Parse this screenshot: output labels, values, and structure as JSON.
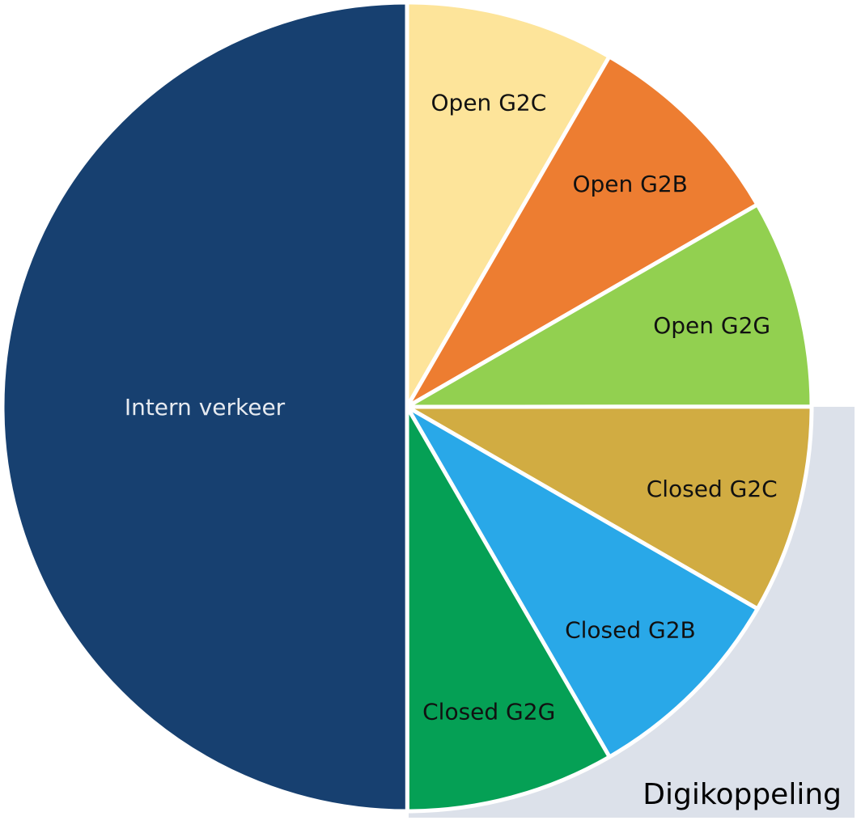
{
  "chart_data": {
    "type": "pie",
    "title": "",
    "start_angle_deg": 0,
    "direction": "clockwise",
    "slices": [
      {
        "label": "Open G2C",
        "value": 8.33,
        "color": "#FDE49A",
        "text_color": "#111111"
      },
      {
        "label": "Open G2B",
        "value": 8.33,
        "color": "#ED7D31",
        "text_color": "#111111"
      },
      {
        "label": "Open G2G",
        "value": 8.33,
        "color": "#92D050",
        "text_color": "#111111"
      },
      {
        "label": "Closed G2C",
        "value": 8.33,
        "color": "#D1AC42",
        "text_color": "#111111"
      },
      {
        "label": "Closed G2B",
        "value": 8.33,
        "color": "#29A8E8",
        "text_color": "#111111"
      },
      {
        "label": "Closed G2G",
        "value": 8.33,
        "color": "#05A055",
        "text_color": "#111111"
      },
      {
        "label": "Intern verkeer",
        "value": 50.0,
        "color": "#174070",
        "text_color": "#E6EAF0"
      }
    ],
    "annotations": [
      {
        "label": "Digikoppeling",
        "covers": [
          "Closed G2C",
          "Closed G2B",
          "Closed G2G"
        ],
        "background": "#DCE1EA",
        "text_color": "#000000"
      }
    ],
    "slice_border_color": "#FFFFFF"
  }
}
